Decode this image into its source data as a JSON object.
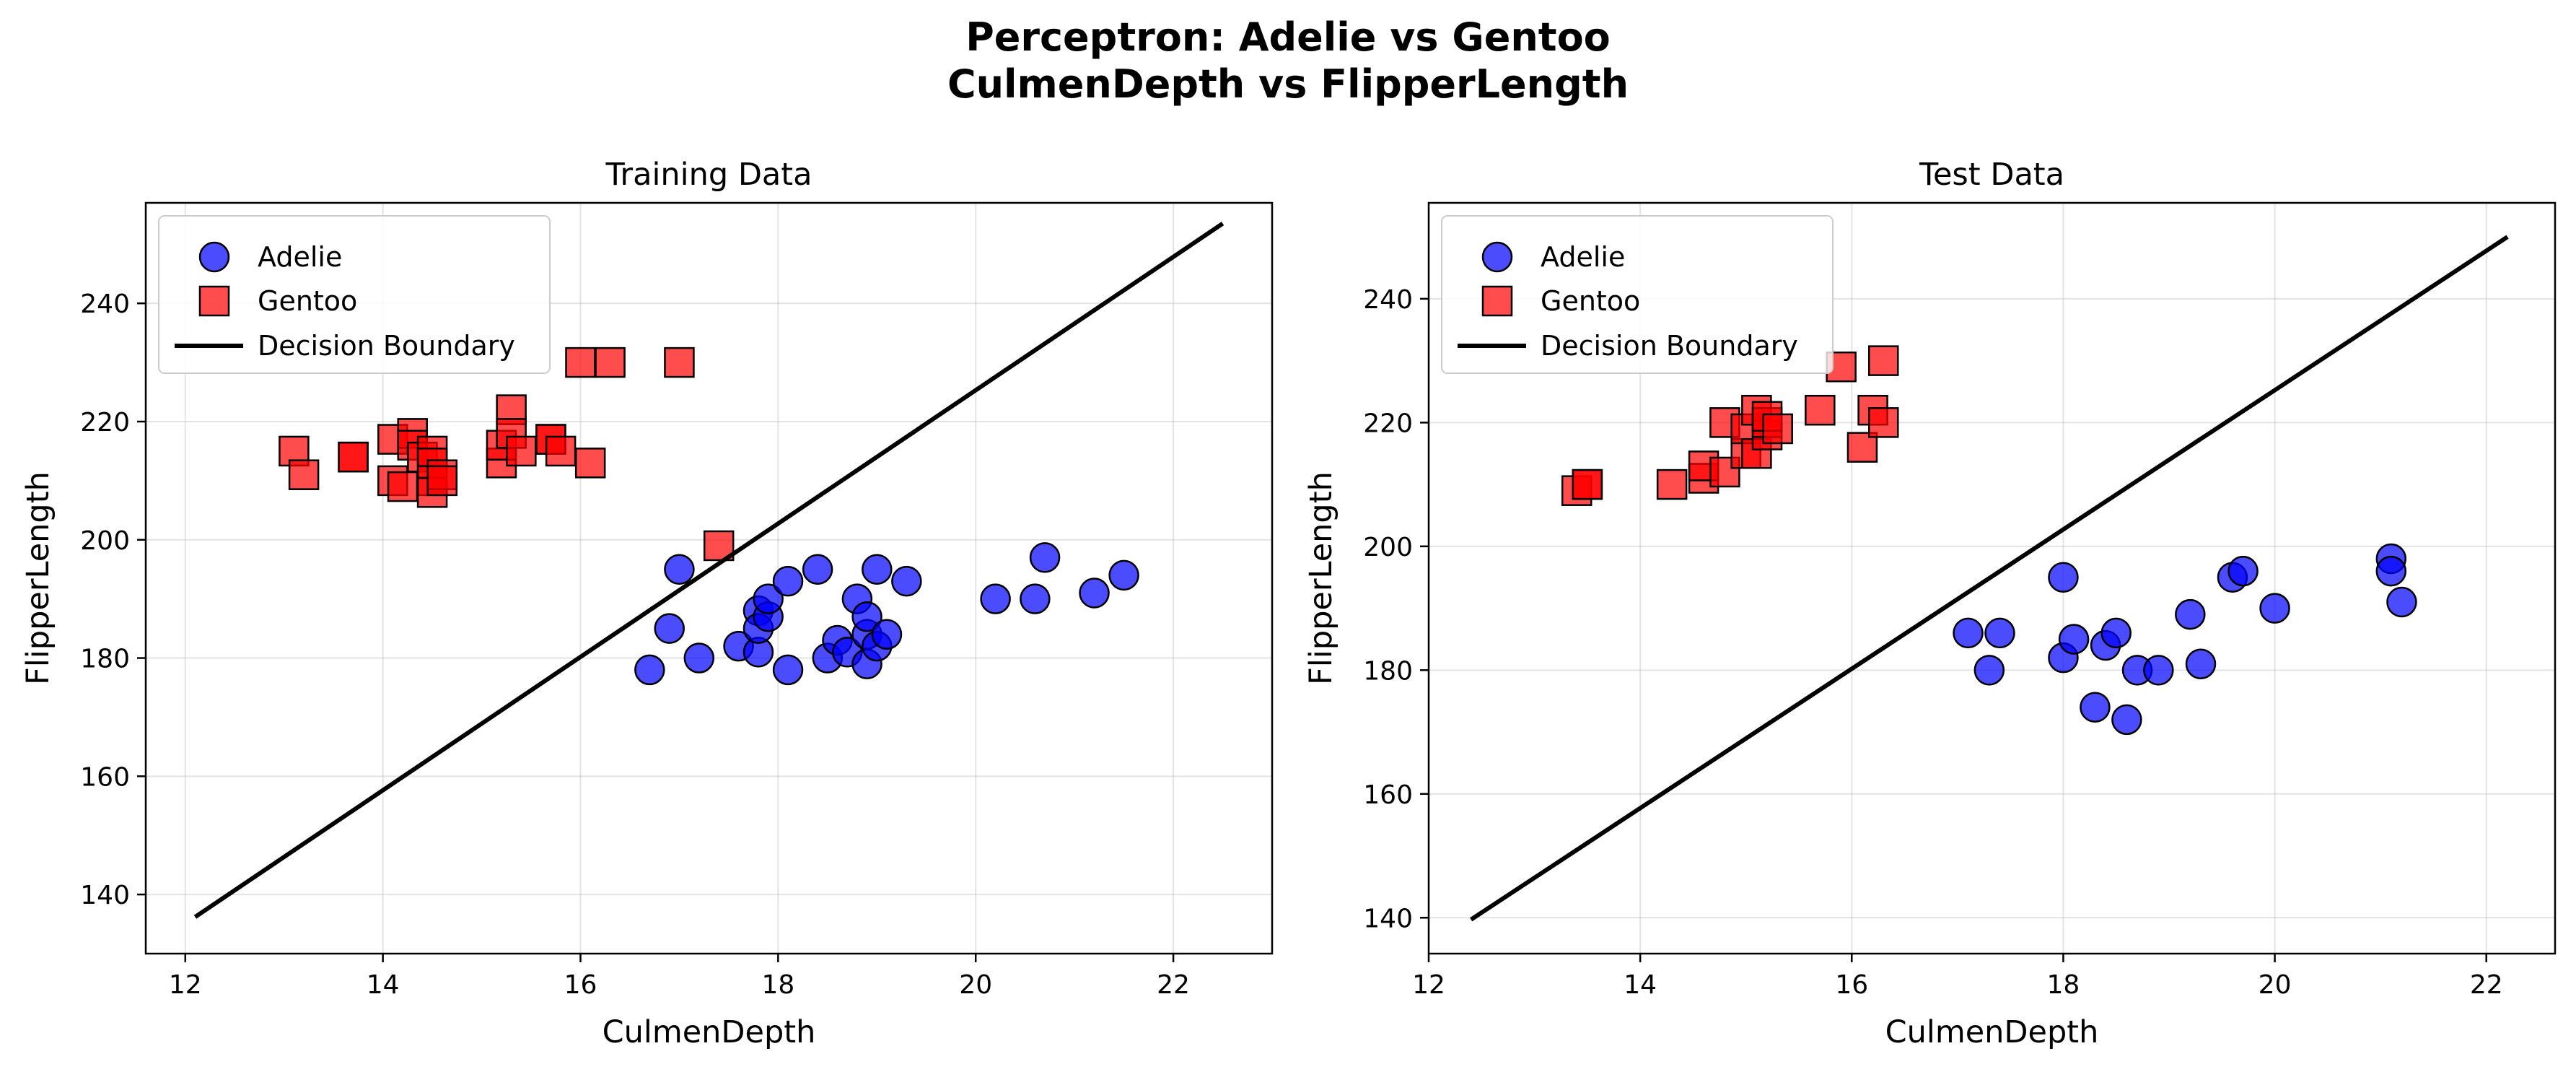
{
  "figure": {
    "title_line1": "Perceptron: Adelie vs Gentoo",
    "title_line2": "CulmenDepth vs FlipperLength"
  },
  "chart_data": [
    {
      "type": "scatter",
      "title": "Training Data",
      "xlabel": "CulmenDepth",
      "ylabel": "FlipperLength",
      "xlim": [
        11.6,
        23.0
      ],
      "ylim": [
        130,
        257
      ],
      "xticks": [
        12,
        14,
        16,
        18,
        20,
        22
      ],
      "yticks": [
        140,
        160,
        180,
        200,
        220,
        240
      ],
      "grid": true,
      "legend_position": "upper-left",
      "series": [
        {
          "name": "Adelie",
          "marker": "circle",
          "color": "#0000ff",
          "points": [
            [
              16.7,
              178
            ],
            [
              16.9,
              185
            ],
            [
              17.0,
              195
            ],
            [
              17.2,
              180
            ],
            [
              17.6,
              182
            ],
            [
              17.8,
              181
            ],
            [
              17.8,
              188
            ],
            [
              17.8,
              185
            ],
            [
              17.9,
              187
            ],
            [
              17.9,
              190
            ],
            [
              18.1,
              178
            ],
            [
              18.1,
              193
            ],
            [
              18.4,
              195
            ],
            [
              18.5,
              180
            ],
            [
              18.6,
              183
            ],
            [
              18.7,
              181
            ],
            [
              18.8,
              190
            ],
            [
              18.9,
              184
            ],
            [
              18.9,
              187
            ],
            [
              18.9,
              179
            ],
            [
              19.0,
              182
            ],
            [
              19.0,
              195
            ],
            [
              19.1,
              184
            ],
            [
              19.3,
              193
            ],
            [
              20.2,
              190
            ],
            [
              20.6,
              190
            ],
            [
              20.7,
              197
            ],
            [
              21.2,
              191
            ],
            [
              21.5,
              194
            ]
          ]
        },
        {
          "name": "Gentoo",
          "marker": "square",
          "color": "#ff0000",
          "points": [
            [
              13.1,
              215
            ],
            [
              13.2,
              211
            ],
            [
              13.7,
              214
            ],
            [
              13.7,
              214
            ],
            [
              14.1,
              217
            ],
            [
              14.1,
              210
            ],
            [
              14.2,
              209
            ],
            [
              14.3,
              218
            ],
            [
              14.3,
              216
            ],
            [
              14.4,
              214
            ],
            [
              14.5,
              215
            ],
            [
              14.5,
              213
            ],
            [
              14.5,
              210
            ],
            [
              14.5,
              208
            ],
            [
              14.6,
              211
            ],
            [
              14.6,
              210
            ],
            [
              15.2,
              213
            ],
            [
              15.2,
              216
            ],
            [
              15.3,
              222
            ],
            [
              15.3,
              218
            ],
            [
              15.4,
              215
            ],
            [
              15.7,
              217
            ],
            [
              15.7,
              217
            ],
            [
              15.8,
              215
            ],
            [
              16.0,
              230
            ],
            [
              16.1,
              213
            ],
            [
              16.3,
              230
            ],
            [
              17.0,
              230
            ],
            [
              17.4,
              199
            ]
          ]
        },
        {
          "name": "Decision Boundary",
          "type": "line",
          "color": "#000000",
          "points": [
            [
              12.1,
              136.2
            ],
            [
              22.5,
              253.5
            ]
          ]
        }
      ]
    },
    {
      "type": "scatter",
      "title": "Test Data",
      "xlabel": "CulmenDepth",
      "ylabel": "FlipperLength",
      "xlim": [
        12.0,
        22.65
      ],
      "ylim": [
        134.2,
        255.5
      ],
      "xticks": [
        12,
        14,
        16,
        18,
        20,
        22
      ],
      "yticks": [
        140,
        160,
        180,
        200,
        220,
        240
      ],
      "grid": true,
      "legend_position": "upper-left",
      "series": [
        {
          "name": "Adelie",
          "marker": "circle",
          "color": "#0000ff",
          "points": [
            [
              17.1,
              186
            ],
            [
              17.3,
              180
            ],
            [
              17.4,
              186
            ],
            [
              18.0,
              195
            ],
            [
              18.0,
              182
            ],
            [
              18.1,
              185
            ],
            [
              18.3,
              174
            ],
            [
              18.4,
              184
            ],
            [
              18.5,
              186
            ],
            [
              18.6,
              172
            ],
            [
              18.7,
              180
            ],
            [
              18.9,
              180
            ],
            [
              19.2,
              189
            ],
            [
              19.3,
              181
            ],
            [
              19.6,
              195
            ],
            [
              19.7,
              196
            ],
            [
              20.0,
              190
            ],
            [
              21.1,
              198
            ],
            [
              21.1,
              196
            ],
            [
              21.2,
              191
            ]
          ]
        },
        {
          "name": "Gentoo",
          "marker": "square",
          "color": "#ff0000",
          "points": [
            [
              13.4,
              209
            ],
            [
              13.5,
              210
            ],
            [
              13.5,
              210
            ],
            [
              14.3,
              210
            ],
            [
              14.6,
              211
            ],
            [
              14.6,
              213
            ],
            [
              14.8,
              212
            ],
            [
              14.8,
              220
            ],
            [
              15.0,
              215
            ],
            [
              15.0,
              219
            ],
            [
              15.1,
              215
            ],
            [
              15.1,
              222
            ],
            [
              15.2,
              218
            ],
            [
              15.2,
              220
            ],
            [
              15.2,
              221
            ],
            [
              15.3,
              219
            ],
            [
              15.7,
              222
            ],
            [
              15.9,
              229
            ],
            [
              16.1,
              216
            ],
            [
              16.2,
              222
            ],
            [
              16.3,
              220
            ],
            [
              16.3,
              230
            ]
          ]
        },
        {
          "name": "Decision Boundary",
          "type": "line",
          "color": "#000000",
          "points": [
            [
              12.4,
              139.7
            ],
            [
              22.2,
              250.0
            ]
          ]
        }
      ]
    }
  ]
}
